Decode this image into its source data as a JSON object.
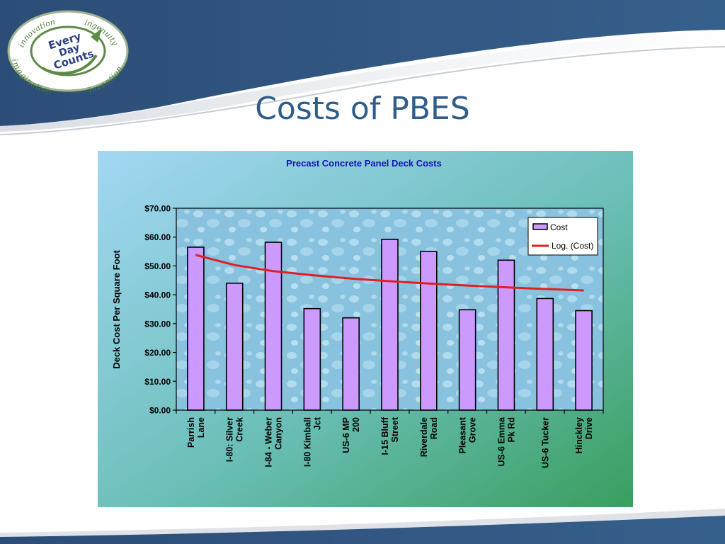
{
  "slide": {
    "title": "Costs of PBES",
    "logo": {
      "center_lines": [
        "Every",
        "Day",
        "Counts"
      ],
      "ring_words": [
        "innovation",
        "ingenuity",
        "imagination",
        "invention"
      ]
    },
    "colors": {
      "title": "#2e5d8a",
      "banner": "#2d4f78"
    }
  },
  "chart_data": {
    "type": "bar",
    "title": "Precast Concrete Panel Deck Costs",
    "ylabel": "Deck Cost Per Square Foot",
    "xlabel": "",
    "ylim": [
      0,
      70
    ],
    "yticks": [
      "$0.00",
      "$10.00",
      "$20.00",
      "$30.00",
      "$40.00",
      "$50.00",
      "$60.00",
      "$70.00"
    ],
    "grid": false,
    "legend_position": "top-right",
    "categories": [
      [
        "Parrish",
        "Lane"
      ],
      [
        "I-80: Silver",
        "Creek"
      ],
      [
        "I-84 - Weber",
        "Canyon"
      ],
      [
        "I-80 Kimball",
        "Jct"
      ],
      [
        "US-6 MP",
        "200"
      ],
      [
        "I-15 Bluff",
        "Street"
      ],
      [
        "Riverdale",
        "Road"
      ],
      [
        "Pleasant",
        "Grove"
      ],
      [
        "US-6 Emma",
        "Pk Rd"
      ],
      [
        "US-6 Tucker"
      ],
      [
        "Hinckley",
        "Drive"
      ]
    ],
    "series": [
      {
        "name": "Cost",
        "kind": "bar",
        "color": "#cc99ff",
        "values": [
          56.5,
          44.0,
          58.2,
          35.2,
          32.0,
          59.2,
          55.0,
          34.8,
          52.0,
          38.7,
          34.5
        ]
      },
      {
        "name": "Log. (Cost)",
        "kind": "trendline",
        "color": "#e02020",
        "values": [
          53.8,
          50.3,
          48.2,
          46.8,
          45.6,
          44.7,
          43.9,
          43.2,
          42.6,
          42.0,
          41.5
        ]
      }
    ]
  }
}
